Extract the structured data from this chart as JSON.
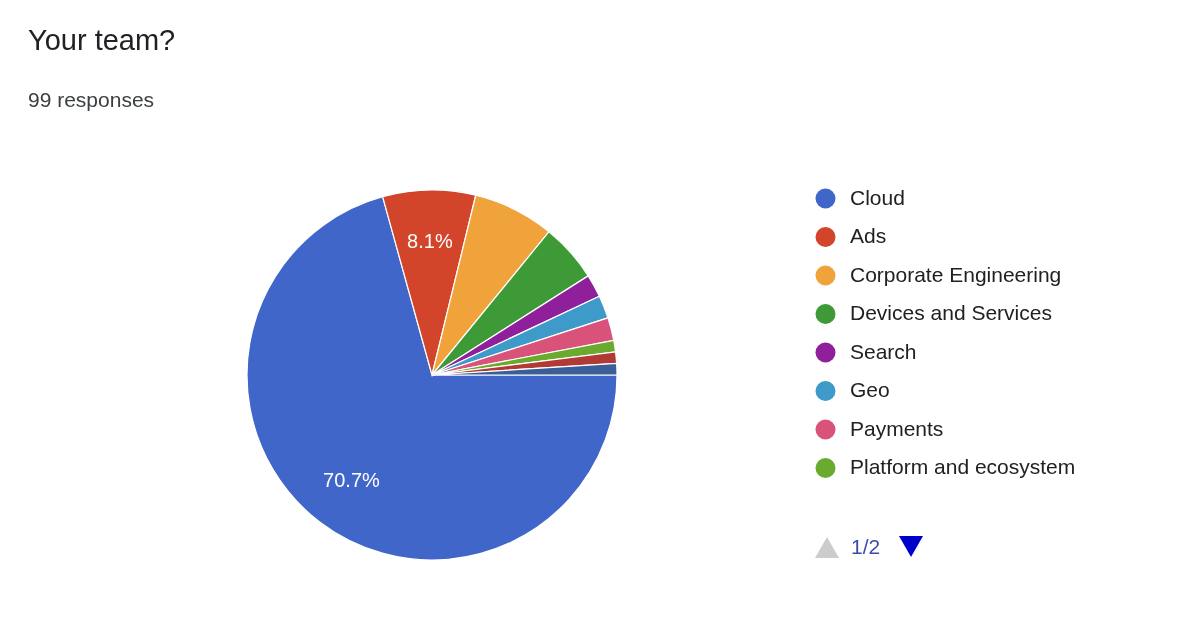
{
  "chart_data": {
    "type": "pie",
    "title": "Your team?",
    "subtitle": "99 responses",
    "categories": [
      "Cloud",
      "Ads",
      "Corporate Engineering",
      "Devices and Services",
      "Search",
      "Geo",
      "Payments",
      "Platform and ecosystem",
      null,
      null
    ],
    "values": [
      70.7,
      8.1,
      7.1,
      5.1,
      2.0,
      2.0,
      2.0,
      1.0,
      1.0,
      1.0
    ],
    "colors": [
      "#4166c9",
      "#d2452a",
      "#f0a23b",
      "#3e9a36",
      "#8f1f9b",
      "#3d9ac9",
      "#d9527a",
      "#6aaa2e",
      "#b13a36",
      "#3a5f97"
    ],
    "value_labels": [
      "70.7%",
      "8.1%",
      null,
      null,
      null,
      null,
      null,
      null,
      null,
      null
    ],
    "legend": "right",
    "annotations": [
      "1/2"
    ]
  }
}
